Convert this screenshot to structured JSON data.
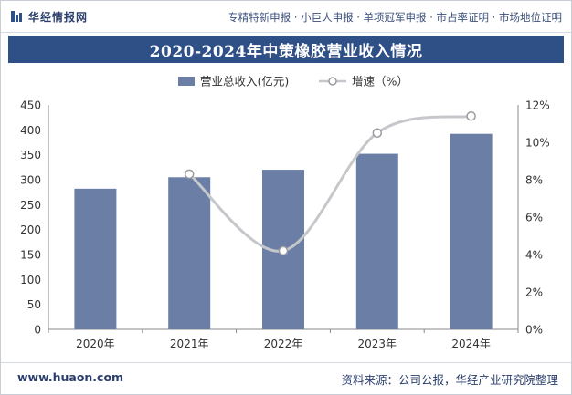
{
  "header": {
    "logo_text": "华经情报网",
    "tagline": "专精特新申报 · 小巨人申报 · 单项冠军申报 · 市占率证明 · 市场地位证明"
  },
  "footer": {
    "website": "www.huaon.com",
    "source": "资料来源：公司公报，华经产业研究院整理"
  },
  "colors": {
    "title_bg": "#2f4f87",
    "bar": "#6b7fa6",
    "line": "#c6c7cb",
    "marker_stroke": "#9a9aa0"
  },
  "chart_data": {
    "type": "bar+line",
    "title": "2020-2024年中策橡胶营业收入情况",
    "categories": [
      "2020年",
      "2021年",
      "2022年",
      "2023年",
      "2024年"
    ],
    "series": [
      {
        "name": "营业总收入(亿元)",
        "type": "bar",
        "axis": "left",
        "values": [
          282,
          305,
          320,
          352,
          392
        ]
      },
      {
        "name": "增速（%）",
        "type": "line",
        "axis": "right",
        "values": [
          null,
          8.3,
          4.2,
          10.5,
          11.4
        ]
      }
    ],
    "y_left": {
      "min": 0,
      "max": 450,
      "step": 50,
      "ticks": [
        "0",
        "50",
        "100",
        "150",
        "200",
        "250",
        "300",
        "350",
        "400",
        "450"
      ]
    },
    "y_right": {
      "min": 0,
      "max": 12,
      "step": 2,
      "ticks": [
        "0%",
        "2%",
        "4%",
        "6%",
        "8%",
        "10%",
        "12%"
      ]
    },
    "legend": {
      "placement": "top-center",
      "bar_label": "营业总收入(亿元)",
      "line_label": "增速（%）"
    },
    "grid": false
  }
}
